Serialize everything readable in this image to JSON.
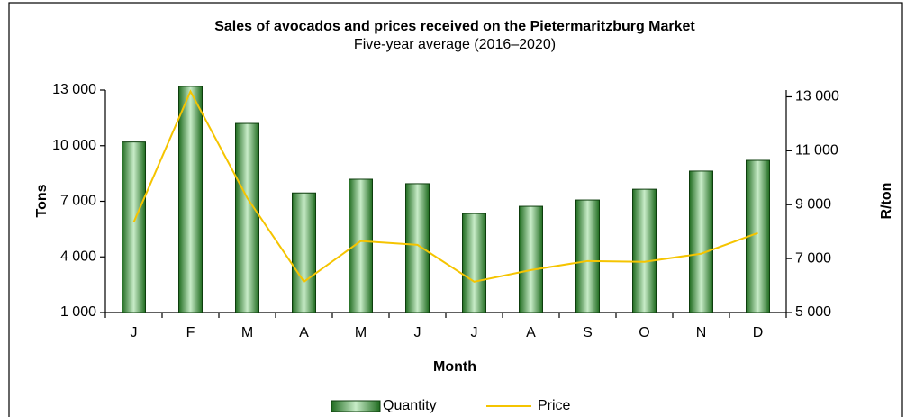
{
  "chart_data": {
    "type": "bar_line",
    "title": "Sales of avocados and prices received on the Pietermaritzburg Market",
    "subtitle": "Five-year average (2016–2020)",
    "x_label": "Month",
    "y_label": "Tons",
    "y2_label": "R/ton",
    "categories": [
      "J",
      "F",
      "M",
      "A",
      "M",
      "J",
      "J",
      "A",
      "S",
      "O",
      "N",
      "D"
    ],
    "series": [
      {
        "name": "Quantity",
        "type": "bar",
        "color": "#2e7d2e",
        "values": [
          10200,
          13200,
          11200,
          7450,
          8190,
          7950,
          6340,
          6730,
          7070,
          7650,
          8630,
          9210
        ]
      },
      {
        "name": "Price",
        "type": "line",
        "axis": "y2",
        "color": "#f5c400",
        "values": [
          8350,
          13200,
          9250,
          6140,
          7650,
          7510,
          6140,
          6575,
          6910,
          6880,
          7180,
          7950
        ]
      }
    ],
    "ylim": [
      1000,
      13000
    ],
    "yticks": [
      {
        "value": 1000,
        "label": "1 000"
      },
      {
        "value": 4000,
        "label": "4 000"
      },
      {
        "value": 7000,
        "label": "7 000"
      },
      {
        "value": 10000,
        "label": "10 000"
      },
      {
        "value": 13000,
        "label": "13 000"
      }
    ],
    "y2lim": [
      5000,
      13250
    ],
    "y2ticks": [
      {
        "value": 5000,
        "label": "5 000"
      },
      {
        "value": 7000,
        "label": "7 000"
      },
      {
        "value": 9000,
        "label": "9 000"
      },
      {
        "value": 11000,
        "label": "11 000"
      },
      {
        "value": 13000,
        "label": "13 000"
      }
    ],
    "legend": "bottom"
  }
}
